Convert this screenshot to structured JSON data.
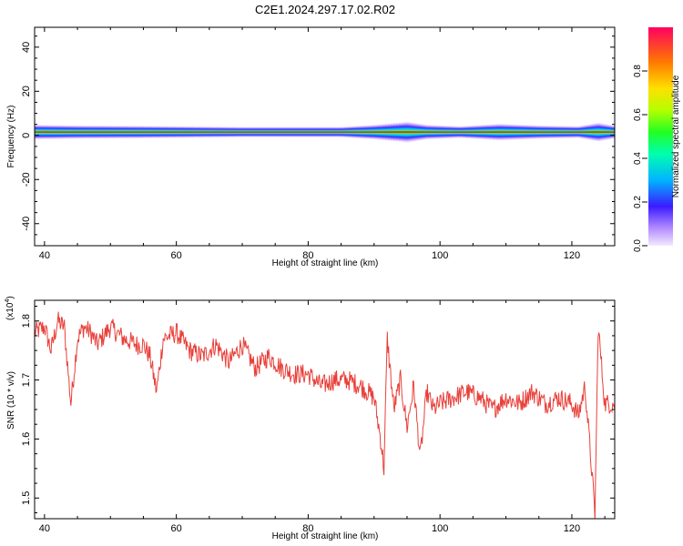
{
  "title": "C2E1.2024.297.17.02.R02",
  "colors": {
    "snr_line": "#e8403a",
    "axis": "#000000",
    "background": "#ffffff"
  },
  "chart_data": [
    {
      "type": "heatmap",
      "xlabel": "Height of straight line (km)",
      "ylabel": "Frequency (Hz)",
      "xlim": [
        38.5,
        126.5
      ],
      "ylim": [
        -50,
        49
      ],
      "x_ticks": [
        40,
        60,
        80,
        100,
        120
      ],
      "x_tick_labels": [
        "40",
        "60",
        "80",
        "100",
        "120"
      ],
      "y_ticks": [
        -40,
        -20,
        0,
        20,
        40
      ],
      "y_tick_labels": [
        "-40",
        "-20",
        "0",
        "20",
        "40"
      ],
      "grid": false,
      "description_band_center_hz": 1.5,
      "bandwidth_profile": [
        {
          "x": 38.5,
          "half_width_hz": 3.5
        },
        {
          "x": 45,
          "half_width_hz": 3.2
        },
        {
          "x": 55,
          "half_width_hz": 3.0
        },
        {
          "x": 70,
          "half_width_hz": 2.5
        },
        {
          "x": 85,
          "half_width_hz": 2.5
        },
        {
          "x": 90,
          "half_width_hz": 3.5
        },
        {
          "x": 95,
          "half_width_hz": 5.0
        },
        {
          "x": 98,
          "half_width_hz": 3.5
        },
        {
          "x": 103,
          "half_width_hz": 2.8
        },
        {
          "x": 109,
          "half_width_hz": 4.0
        },
        {
          "x": 115,
          "half_width_hz": 3.2
        },
        {
          "x": 121,
          "half_width_hz": 2.8
        },
        {
          "x": 124,
          "half_width_hz": 4.5
        },
        {
          "x": 126.5,
          "half_width_hz": 3.0
        }
      ],
      "colorbar": {
        "label": "Normalized spectral amplitude",
        "range": [
          0,
          1
        ],
        "ticks": [
          0.0,
          0.2,
          0.4,
          0.6,
          0.8
        ],
        "tick_labels": [
          "0.0",
          "0.2",
          "0.4",
          "0.6",
          "0.8"
        ]
      }
    },
    {
      "type": "line",
      "xlabel": "Height of straight line (km)",
      "ylabel": "SNR (10 * v/v)",
      "y_multiplier_label": "(x10",
      "y_multiplier_exp": "4",
      "y_multiplier_close": ")",
      "xlim": [
        38.5,
        126.5
      ],
      "ylim": [
        1.465,
        1.835
      ],
      "x_ticks": [
        40,
        60,
        80,
        100,
        120
      ],
      "x_tick_labels": [
        "40",
        "60",
        "80",
        "100",
        "120"
      ],
      "y_ticks": [
        1.5,
        1.6,
        1.7,
        1.8
      ],
      "y_tick_labels": [
        "1.5",
        "1.6",
        "1.7",
        "1.8"
      ],
      "grid": false,
      "series": [
        {
          "x": [
            38.5,
            40,
            41,
            42,
            43,
            44,
            45,
            46,
            47,
            48,
            50,
            52,
            54,
            55,
            56,
            57,
            58,
            60,
            62,
            64,
            66,
            68,
            70,
            72,
            74,
            76,
            78,
            80,
            82,
            84,
            86,
            88,
            90,
            91,
            91.5,
            92,
            93,
            94,
            95,
            96,
            97,
            98,
            99,
            100,
            102,
            104,
            106,
            108,
            110,
            112,
            114,
            116,
            118,
            120,
            121,
            122,
            123,
            123.5,
            124,
            125,
            126.5
          ],
          "values": [
            1.78,
            1.79,
            1.75,
            1.8,
            1.79,
            1.66,
            1.77,
            1.79,
            1.78,
            1.76,
            1.79,
            1.77,
            1.76,
            1.76,
            1.74,
            1.68,
            1.77,
            1.78,
            1.75,
            1.74,
            1.76,
            1.73,
            1.76,
            1.72,
            1.74,
            1.72,
            1.71,
            1.71,
            1.69,
            1.7,
            1.7,
            1.69,
            1.67,
            1.6,
            1.55,
            1.77,
            1.65,
            1.7,
            1.62,
            1.69,
            1.57,
            1.68,
            1.65,
            1.66,
            1.67,
            1.68,
            1.67,
            1.65,
            1.67,
            1.66,
            1.68,
            1.66,
            1.67,
            1.66,
            1.64,
            1.69,
            1.55,
            1.47,
            1.79,
            1.66,
            1.66
          ]
        }
      ]
    }
  ]
}
